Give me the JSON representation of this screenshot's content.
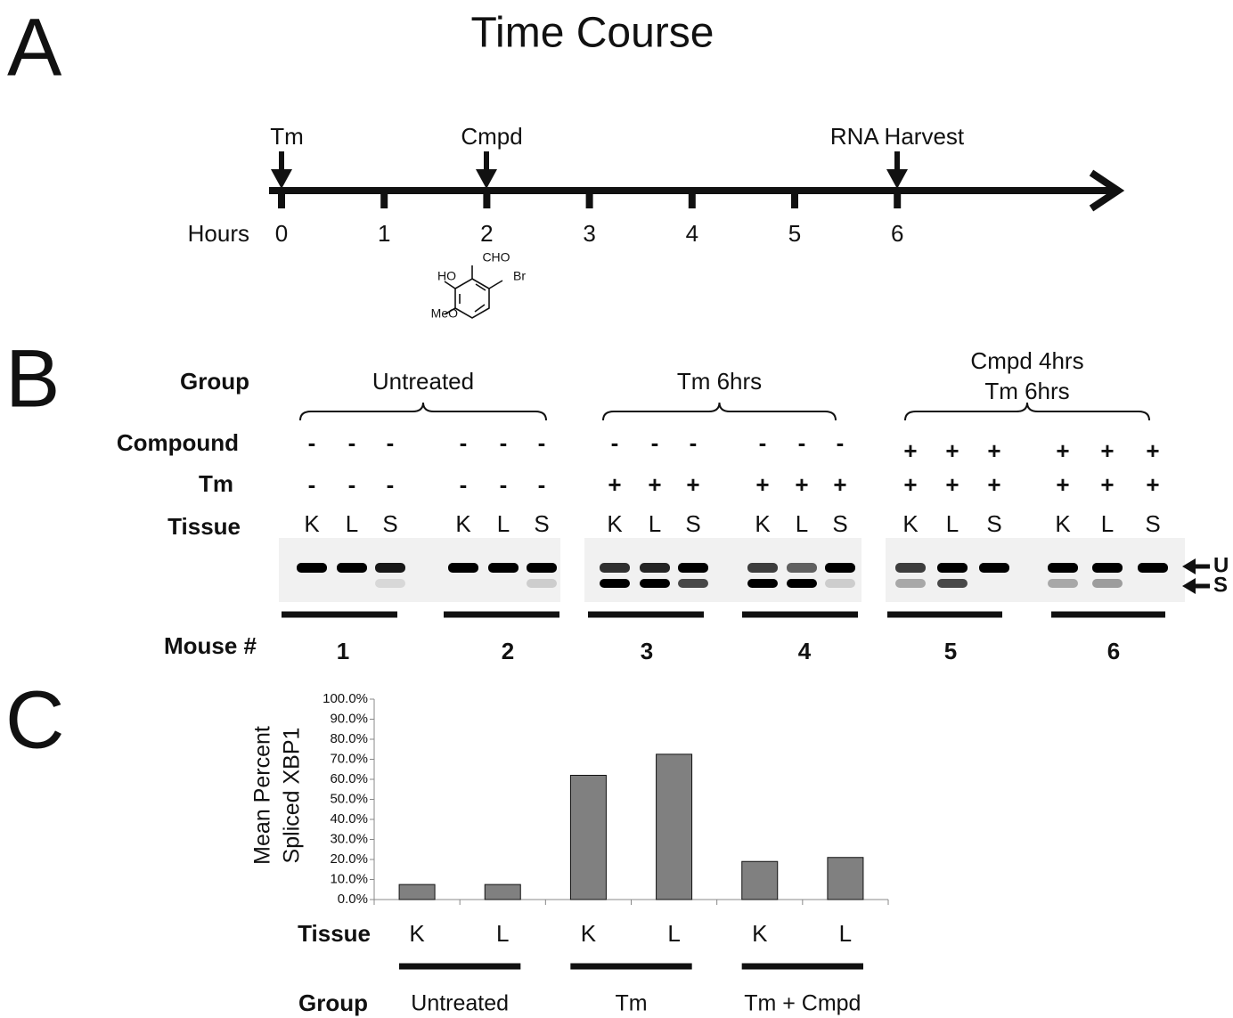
{
  "panel_a": {
    "letter": "A",
    "title": "Time Course",
    "events": [
      "Tm",
      "Cmpd",
      "RNA Harvest"
    ],
    "axis_label": "Hours",
    "hours": [
      0,
      1,
      2,
      3,
      4,
      5,
      6
    ],
    "structure": {
      "top": "CHO",
      "left": "HO",
      "right": "Br",
      "bottom_left": "MeO"
    }
  },
  "panel_b": {
    "letter": "B",
    "row_labels": {
      "group": "Group",
      "compound": "Compound",
      "tm": "Tm",
      "tissue": "Tissue",
      "mouse": "Mouse #"
    },
    "groups": [
      [
        "Untreated"
      ],
      [
        "Tm 6hrs"
      ],
      [
        "Cmpd 4hrs",
        "Tm 6hrs"
      ]
    ],
    "compound": [
      "-",
      "-",
      "-",
      "-",
      "-",
      "-",
      "-",
      "-",
      "-",
      "-",
      "-",
      "-",
      "+",
      "+",
      "+",
      "+",
      "+",
      "+"
    ],
    "tm": [
      "-",
      "-",
      "-",
      "-",
      "-",
      "-",
      "+",
      "+",
      "+",
      "+",
      "+",
      "+",
      "+",
      "+",
      "+",
      "+",
      "+",
      "+"
    ],
    "tissue": [
      "K",
      "L",
      "S",
      "K",
      "L",
      "S",
      "K",
      "L",
      "S",
      "K",
      "L",
      "S",
      "K",
      "L",
      "S",
      "K",
      "L",
      "S"
    ],
    "band_labels": [
      "U",
      "S"
    ],
    "mice": [
      "1",
      "2",
      "3",
      "4",
      "5",
      "6"
    ]
  },
  "chart_data": {
    "type": "bar",
    "letter": "C",
    "y_label": [
      "Mean Percent",
      "Spliced XBP1"
    ],
    "x_label": "Tissue",
    "categories": [
      "K",
      "L",
      "K",
      "L",
      "K",
      "L"
    ],
    "values": [
      7.5,
      7.5,
      62,
      72.5,
      19,
      21
    ],
    "color": "#808080",
    "ylim": [
      0,
      100
    ],
    "yticks": [
      {
        "value": 0,
        "label": "0.0%"
      },
      {
        "value": 10,
        "label": "10.0%"
      },
      {
        "value": 20,
        "label": "20.0%"
      },
      {
        "value": 30,
        "label": "30.0%"
      },
      {
        "value": 40,
        "label": "40.0%"
      },
      {
        "value": 50,
        "label": "50.0%"
      },
      {
        "value": 60,
        "label": "60.0%"
      },
      {
        "value": 70,
        "label": "70.0%"
      },
      {
        "value": 80,
        "label": "80.0%"
      },
      {
        "value": 90,
        "label": "90.0%"
      },
      {
        "value": 100,
        "label": "100.0%"
      }
    ],
    "group_label": "Group",
    "groups": [
      "Untreated",
      "Tm",
      "Tm + Cmpd"
    ]
  }
}
